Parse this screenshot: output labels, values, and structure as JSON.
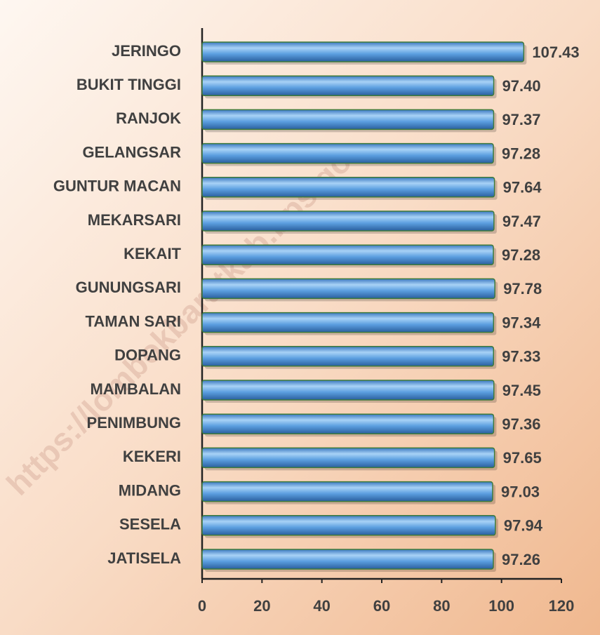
{
  "chart_data": {
    "type": "bar",
    "orientation": "horizontal",
    "categories": [
      "JERINGO",
      "BUKIT TINGGI",
      "RANJOK",
      "GELANGSAR",
      "GUNTUR MACAN",
      "MEKARSARI",
      "KEKAIT",
      "GUNUNGSARI",
      "TAMAN SARI",
      "DOPANG",
      "MAMBALAN",
      "PENIMBUNG",
      "KEKERI",
      "MIDANG",
      "SESELA",
      "JATISELA"
    ],
    "values": [
      107.43,
      97.4,
      97.37,
      97.28,
      97.64,
      97.47,
      97.28,
      97.78,
      97.34,
      97.33,
      97.45,
      97.36,
      97.65,
      97.03,
      97.94,
      97.26
    ],
    "value_labels": [
      "107.43",
      "97.40",
      "97.37",
      "97.28",
      "97.64",
      "97.47",
      "97.28",
      "97.78",
      "97.34",
      "97.33",
      "97.45",
      "97.36",
      "97.65",
      "97.03",
      "97.94",
      "97.26"
    ],
    "color": "#4a90d9",
    "xlim": [
      0,
      120
    ],
    "xticks": [
      0,
      20,
      40,
      60,
      80,
      100,
      120
    ],
    "grid": false,
    "watermark": "https://lombokbaratkab.bps.go"
  }
}
